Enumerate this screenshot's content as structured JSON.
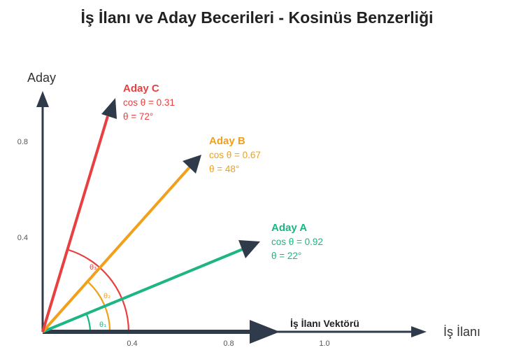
{
  "title": "İş İlanı ve Aday Becerileri - Kosinüs Benzerliği",
  "axes": {
    "x_label": "İş İlanı",
    "y_label": "Aday",
    "x_ticks": [
      "0.4",
      "0.8",
      "1.0"
    ],
    "y_ticks": [
      "0.8",
      "0.4"
    ]
  },
  "job_vector": {
    "label": "İş İlanı Vektörü",
    "color": "#2f3a4a"
  },
  "candidates": [
    {
      "name": "Aday A",
      "cos_text": "cos θ = 0.92",
      "angle_text": "θ = 22°",
      "theta_symbol": "θ₁",
      "color": "#1db584"
    },
    {
      "name": "Aday B",
      "cos_text": "cos θ = 0.67",
      "angle_text": "θ = 48°",
      "theta_symbol": "θ₂",
      "color": "#f0a01a"
    },
    {
      "name": "Aday C",
      "cos_text": "cos θ = 0.31",
      "angle_text": "θ = 72°",
      "theta_symbol": "θ₃",
      "color": "#e84040"
    }
  ]
}
